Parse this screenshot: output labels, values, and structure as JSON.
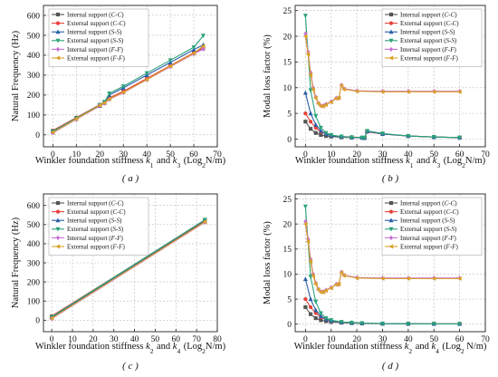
{
  "legend_prefixes": {
    "internal": "Internal support",
    "external": "External support"
  },
  "chart_data": [
    {
      "type": "line",
      "panel": "a",
      "caption": "( a )",
      "xlabel": "Winkler foundation stiffness k1 and k3 (Log2N/m)",
      "ylabel": "Natural Frequency (Hz)",
      "xlim": [
        -4,
        70
      ],
      "ylim": [
        -60,
        650
      ],
      "xticks": [
        0,
        10,
        20,
        30,
        40,
        50,
        60,
        70
      ],
      "yticks": [
        0,
        100,
        200,
        300,
        400,
        500,
        600
      ],
      "grid": true,
      "legend_position": "top-left",
      "series": [
        {
          "name": "Internal support (C-C)",
          "color": "#555555",
          "marker": "square",
          "x": [
            0,
            10,
            20,
            22,
            24,
            30,
            40,
            50,
            60,
            64
          ],
          "y": [
            20,
            85,
            150,
            162,
            182,
            216,
            280,
            345,
            410,
            434
          ]
        },
        {
          "name": "External support (C-C)",
          "color": "#e8413a",
          "marker": "circle",
          "x": [
            0,
            10,
            20,
            22,
            24,
            30,
            40,
            50,
            60,
            64
          ],
          "y": [
            22,
            87,
            152,
            165,
            185,
            219,
            283,
            348,
            413,
            437
          ]
        },
        {
          "name": "Internal support (S-S)",
          "color": "#2a5fa8",
          "marker": "triangle-up",
          "x": [
            0,
            10,
            20,
            22,
            24,
            30,
            40,
            50,
            60,
            64
          ],
          "y": [
            15,
            80,
            145,
            160,
            200,
            236,
            300,
            364,
            428,
            452
          ]
        },
        {
          "name": "External support (S-S)",
          "color": "#2aa37a",
          "marker": "triangle-down",
          "x": [
            0,
            10,
            20,
            22,
            24,
            30,
            40,
            50,
            60,
            64
          ],
          "y": [
            18,
            84,
            150,
            166,
            208,
            244,
            310,
            375,
            440,
            498
          ]
        },
        {
          "name": "Internal support (F-F)",
          "color": "#c86fd6",
          "marker": "diamond",
          "x": [
            0,
            10,
            20,
            22,
            24,
            30,
            40,
            50,
            60,
            64
          ],
          "y": [
            10,
            78,
            146,
            158,
            178,
            212,
            277,
            342,
            407,
            431
          ]
        },
        {
          "name": "External support (F-F)",
          "color": "#d9a02a",
          "marker": "triangle-left",
          "x": [
            0,
            10,
            20,
            22,
            24,
            30,
            40,
            50,
            60,
            64
          ],
          "y": [
            12,
            80,
            148,
            160,
            180,
            214,
            278,
            345,
            410,
            446
          ]
        }
      ]
    },
    {
      "type": "line",
      "panel": "b",
      "caption": "( b )",
      "xlabel": "Winkler foundation stiffness k1 and k3 (Log2N/m)",
      "ylabel": "Modal loss factor (%)",
      "xlim": [
        -4,
        70
      ],
      "ylim": [
        -1.5,
        26
      ],
      "xticks": [
        0,
        10,
        20,
        30,
        40,
        50,
        60,
        70
      ],
      "yticks": [
        0,
        5,
        10,
        15,
        20,
        25
      ],
      "grid": true,
      "legend_position": "top-right",
      "series": [
        {
          "name": "Internal support (C-C)",
          "color": "#555555",
          "marker": "square",
          "x": [
            0,
            2,
            4,
            6,
            8,
            10,
            14,
            18,
            22,
            23,
            24,
            30,
            40,
            50,
            60
          ],
          "y": [
            3.4,
            2.0,
            1.2,
            0.8,
            0.6,
            0.5,
            0.35,
            0.3,
            0.25,
            0.2,
            1.5,
            1.0,
            0.6,
            0.4,
            0.3
          ]
        },
        {
          "name": "External support (C-C)",
          "color": "#e8413a",
          "marker": "circle",
          "x": [
            0,
            2,
            4,
            6,
            8,
            10,
            14,
            18,
            22,
            23,
            24,
            30,
            40,
            50,
            60
          ],
          "y": [
            5.0,
            3.4,
            2.2,
            1.4,
            1.0,
            0.7,
            0.5,
            0.4,
            0.3,
            0.25,
            1.4,
            1.0,
            0.6,
            0.4,
            0.3
          ]
        },
        {
          "name": "Internal support (S-S)",
          "color": "#2a5fa8",
          "marker": "triangle-up",
          "x": [
            0,
            2,
            4,
            6,
            8,
            10,
            14,
            18,
            22,
            23,
            24,
            30,
            40,
            50,
            60
          ],
          "y": [
            9.0,
            5.0,
            2.8,
            1.6,
            1.0,
            0.7,
            0.45,
            0.35,
            0.3,
            0.25,
            1.5,
            1.0,
            0.6,
            0.4,
            0.3
          ]
        },
        {
          "name": "External support (S-S)",
          "color": "#2aa37a",
          "marker": "triangle-down",
          "x": [
            0,
            2,
            4,
            6,
            8,
            10,
            14,
            18,
            22,
            23,
            24,
            30,
            40,
            50,
            60
          ],
          "y": [
            24.0,
            9.5,
            4.5,
            2.2,
            1.2,
            0.8,
            0.5,
            0.35,
            0.3,
            0.25,
            1.6,
            1.1,
            0.6,
            0.4,
            0.3
          ]
        },
        {
          "name": "Internal support (F-F)",
          "color": "#c86fd6",
          "marker": "diamond",
          "x": [
            0,
            1,
            2,
            3,
            4,
            5,
            6,
            7,
            8,
            10,
            12,
            13,
            14,
            15,
            20,
            30,
            40,
            50,
            60
          ],
          "y": [
            20.5,
            17.0,
            13.0,
            10.0,
            8.2,
            7.0,
            6.5,
            6.5,
            6.8,
            7.3,
            8.0,
            8.0,
            10.5,
            9.8,
            9.4,
            9.3,
            9.3,
            9.3,
            9.3
          ]
        },
        {
          "name": "External support (F-F)",
          "color": "#d9a02a",
          "marker": "triangle-left",
          "x": [
            0,
            1,
            2,
            3,
            4,
            5,
            6,
            7,
            8,
            10,
            12,
            13,
            14,
            15,
            20,
            30,
            40,
            50,
            60
          ],
          "y": [
            20.0,
            16.5,
            12.5,
            9.6,
            8.0,
            6.9,
            6.4,
            6.4,
            6.7,
            7.2,
            7.9,
            8.0,
            10.4,
            9.7,
            9.3,
            9.2,
            9.2,
            9.2,
            9.2
          ]
        }
      ]
    },
    {
      "type": "line",
      "panel": "c",
      "caption": "( c )",
      "xlabel": "Winkler foundation stiffness k2 and k4 (Log2N/m)",
      "ylabel": "Natural Frequency (Hz)",
      "xlim": [
        -4,
        80
      ],
      "ylim": [
        -60,
        660
      ],
      "xticks": [
        0,
        10,
        20,
        30,
        40,
        50,
        60,
        70,
        80
      ],
      "yticks": [
        0,
        100,
        200,
        300,
        400,
        500,
        600
      ],
      "grid": true,
      "legend_position": "top-left",
      "series": [
        {
          "name": "Internal support (C-C)",
          "color": "#555555",
          "marker": "square",
          "x": [
            0,
            74
          ],
          "y": [
            20,
            520
          ]
        },
        {
          "name": "External support (C-C)",
          "color": "#e8413a",
          "marker": "circle",
          "x": [
            0,
            74
          ],
          "y": [
            22,
            522
          ]
        },
        {
          "name": "Internal support (S-S)",
          "color": "#2a5fa8",
          "marker": "triangle-up",
          "x": [
            0,
            74
          ],
          "y": [
            14,
            516
          ]
        },
        {
          "name": "External support (S-S)",
          "color": "#2aa37a",
          "marker": "triangle-down",
          "x": [
            0,
            74
          ],
          "y": [
            18,
            525
          ]
        },
        {
          "name": "Internal support (F-F)",
          "color": "#c86fd6",
          "marker": "diamond",
          "x": [
            0,
            74
          ],
          "y": [
            8,
            512
          ]
        },
        {
          "name": "External support (F-F)",
          "color": "#d9a02a",
          "marker": "triangle-left",
          "x": [
            0,
            74
          ],
          "y": [
            10,
            514
          ]
        }
      ]
    },
    {
      "type": "line",
      "panel": "d",
      "caption": "( d )",
      "xlabel": "Winkler foundation stiffness k2 and k4 (Log2 N/m)",
      "ylabel": "Modal loss factor (%)",
      "xlim": [
        -4,
        70
      ],
      "ylim": [
        -1.5,
        26
      ],
      "xticks": [
        0,
        10,
        20,
        30,
        40,
        50,
        60,
        70
      ],
      "yticks": [
        0,
        5,
        10,
        15,
        20,
        25
      ],
      "grid": true,
      "legend_position": "top-right",
      "series": [
        {
          "name": "Internal support (C-C)",
          "color": "#555555",
          "marker": "square",
          "x": [
            0,
            2,
            4,
            6,
            8,
            10,
            14,
            18,
            22,
            30,
            40,
            50,
            60
          ],
          "y": [
            3.4,
            2.0,
            1.2,
            0.8,
            0.6,
            0.45,
            0.3,
            0.2,
            0.15,
            0.1,
            0.08,
            0.06,
            0.05
          ]
        },
        {
          "name": "External support (C-C)",
          "color": "#e8413a",
          "marker": "circle",
          "x": [
            0,
            2,
            4,
            6,
            8,
            10,
            14,
            18,
            22,
            30,
            40,
            50,
            60
          ],
          "y": [
            5.0,
            3.4,
            2.2,
            1.4,
            1.0,
            0.7,
            0.4,
            0.3,
            0.2,
            0.12,
            0.08,
            0.06,
            0.05
          ]
        },
        {
          "name": "Internal support (S-S)",
          "color": "#2a5fa8",
          "marker": "triangle-up",
          "x": [
            0,
            2,
            4,
            6,
            8,
            10,
            14,
            18,
            22,
            30,
            40,
            50,
            60
          ],
          "y": [
            9.0,
            5.0,
            2.8,
            1.6,
            1.0,
            0.7,
            0.4,
            0.3,
            0.2,
            0.12,
            0.08,
            0.06,
            0.05
          ]
        },
        {
          "name": "External support (S-S)",
          "color": "#2aa37a",
          "marker": "triangle-down",
          "x": [
            0,
            2,
            4,
            6,
            8,
            10,
            14,
            18,
            22,
            30,
            40,
            50,
            60
          ],
          "y": [
            23.5,
            9.5,
            4.5,
            2.2,
            1.2,
            0.8,
            0.45,
            0.3,
            0.2,
            0.12,
            0.08,
            0.06,
            0.05
          ]
        },
        {
          "name": "Internal support (F-F)",
          "color": "#c86fd6",
          "marker": "diamond",
          "x": [
            0,
            1,
            2,
            3,
            4,
            5,
            6,
            7,
            8,
            10,
            12,
            13,
            14,
            15,
            20,
            30,
            40,
            50,
            60
          ],
          "y": [
            20.5,
            17.0,
            13.0,
            10.0,
            8.2,
            7.0,
            6.5,
            6.5,
            6.8,
            7.3,
            8.0,
            8.0,
            10.4,
            9.8,
            9.3,
            9.2,
            9.2,
            9.2,
            9.2
          ]
        },
        {
          "name": "External support (F-F)",
          "color": "#d9a02a",
          "marker": "triangle-left",
          "x": [
            0,
            1,
            2,
            3,
            4,
            5,
            6,
            7,
            8,
            10,
            12,
            13,
            14,
            15,
            20,
            30,
            40,
            50,
            60
          ],
          "y": [
            20.0,
            16.5,
            12.5,
            9.6,
            8.0,
            6.9,
            6.4,
            6.4,
            6.7,
            7.2,
            7.9,
            8.0,
            10.3,
            9.7,
            9.2,
            9.1,
            9.1,
            9.1,
            9.1
          ]
        }
      ]
    }
  ]
}
